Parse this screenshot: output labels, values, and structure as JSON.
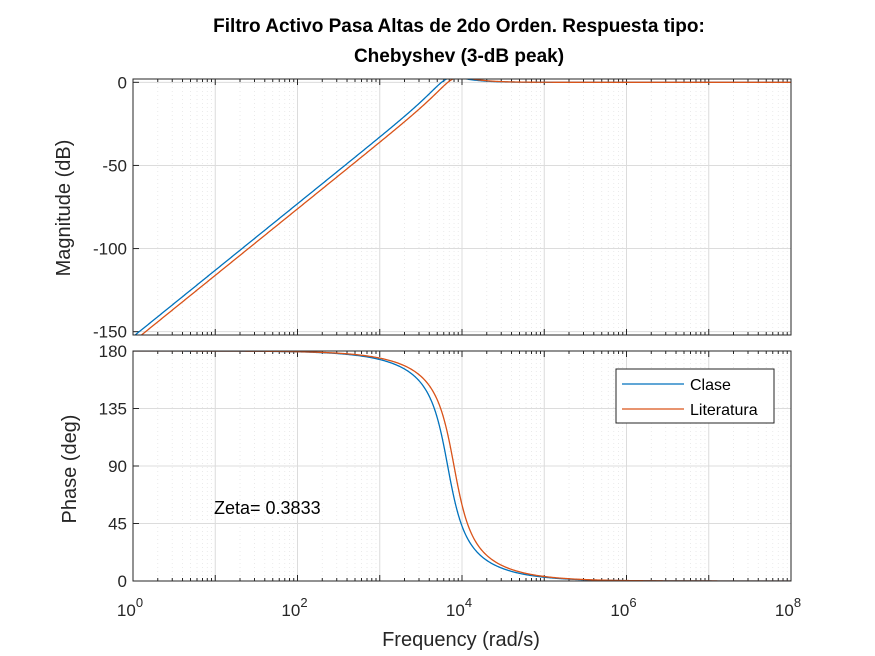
{
  "chart_data": {
    "type": "line",
    "title_lines": [
      "Filtro Activo Pasa Altas de 2do Orden. Respuesta tipo:",
      "Chebyshev (3-dB peak)"
    ],
    "xlabel": "Frequency  (rad/s)",
    "xscale": "log",
    "xlim": [
      1,
      100000000
    ],
    "xtick_labels": [
      {
        "base": "10",
        "exp": "0"
      },
      {
        "base": "10",
        "exp": "2"
      },
      {
        "base": "10",
        "exp": "4"
      },
      {
        "base": "10",
        "exp": "6"
      },
      {
        "base": "10",
        "exp": "8"
      }
    ],
    "xtick_values": [
      1,
      100,
      10000,
      1000000,
      100000000
    ],
    "grid": true,
    "minor_grid": true,
    "colors": {
      "Clase": "#0072BD",
      "Literatura": "#D95319"
    },
    "magnitude": {
      "ylabel": "Magnitude (dB)",
      "ylim": [
        -152,
        2
      ],
      "yticks": [
        "0",
        "-50",
        "-100",
        "-150"
      ],
      "ytick_values": [
        0,
        -50,
        -100,
        -150
      ],
      "series": [
        {
          "name": "Clase",
          "wn": 6700,
          "zeta": 0.3833
        },
        {
          "name": "Literatura",
          "wn": 8000,
          "zeta": 0.3833
        }
      ]
    },
    "phase": {
      "ylabel": "Phase (deg)",
      "ylim": [
        0,
        180
      ],
      "yticks": [
        "180",
        "135",
        "90",
        "45",
        "0"
      ],
      "ytick_values": [
        180,
        135,
        90,
        45,
        0
      ],
      "series": [
        {
          "name": "Clase",
          "wn": 6700,
          "zeta": 0.3833
        },
        {
          "name": "Literatura",
          "wn": 8000,
          "zeta": 0.3833
        }
      ],
      "legend": {
        "placement": "top-right",
        "entries": [
          "Clase",
          "Literatura"
        ]
      },
      "annotation": "Zeta= 0.3833"
    }
  }
}
